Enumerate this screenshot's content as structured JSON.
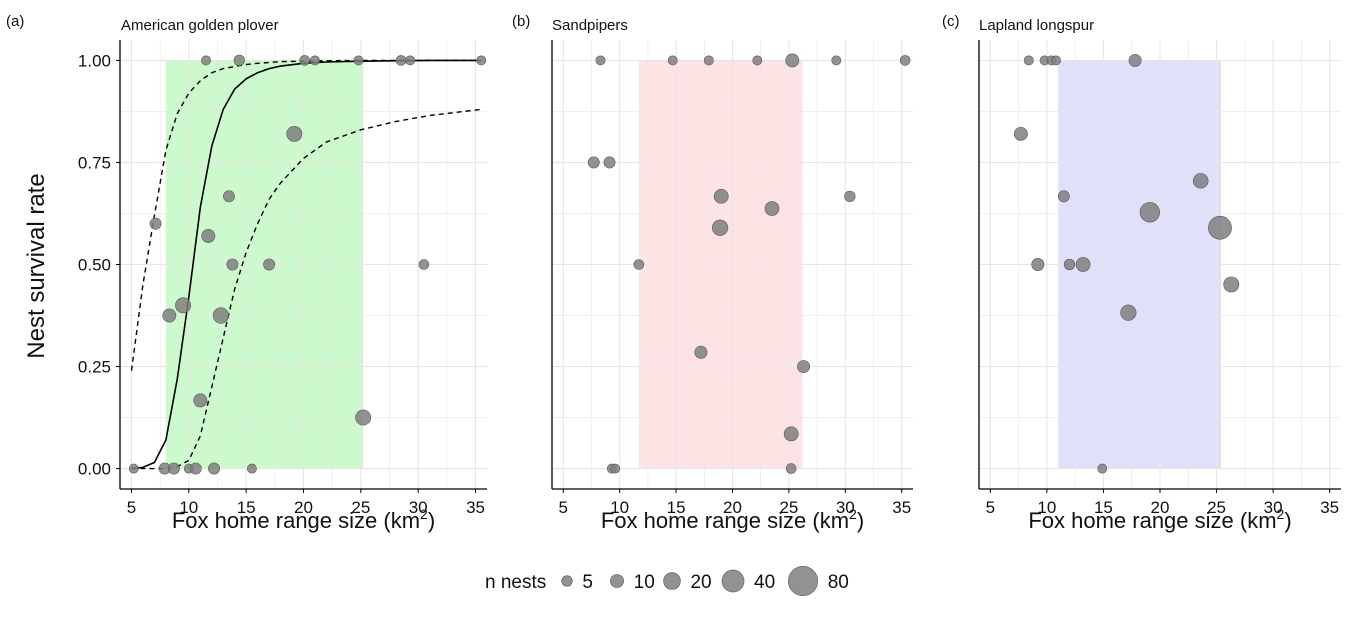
{
  "chart_data": [
    {
      "type": "scatter",
      "panel_label": "(a)",
      "title": "American golden plover",
      "xlabel": "Fox home range size",
      "xunit": "km",
      "xunit_sup": "2",
      "ylabel": "Nest survival rate",
      "xlim": [
        4,
        36
      ],
      "ylim": [
        -0.05,
        1.05
      ],
      "xticks": [
        5,
        10,
        15,
        20,
        25,
        30,
        35
      ],
      "yticks": [
        "0.00",
        "0.25",
        "0.50",
        "0.75",
        "1.00"
      ],
      "grid": true,
      "shaded_range": {
        "x": [
          8,
          25.2
        ],
        "color": "#ccfacc"
      },
      "fit": {
        "fit_x": [
          5,
          6,
          7,
          8,
          9,
          10,
          11,
          12,
          13,
          14,
          15,
          16,
          17,
          18,
          20,
          22,
          25,
          28,
          31,
          35.5
        ],
        "fit_y": [
          0.0,
          0.003,
          0.015,
          0.07,
          0.22,
          0.42,
          0.64,
          0.79,
          0.88,
          0.93,
          0.955,
          0.97,
          0.98,
          0.986,
          0.993,
          0.996,
          0.998,
          0.999,
          1.0,
          1.0
        ],
        "lower_y": [
          0.0,
          0.0,
          0.0,
          0.0,
          0.005,
          0.02,
          0.08,
          0.2,
          0.32,
          0.44,
          0.53,
          0.6,
          0.66,
          0.7,
          0.76,
          0.8,
          0.83,
          0.85,
          0.865,
          0.88
        ],
        "upper_y": [
          0.24,
          0.45,
          0.62,
          0.78,
          0.87,
          0.92,
          0.95,
          0.97,
          0.98,
          0.985,
          0.99,
          0.993,
          0.995,
          0.997,
          0.998,
          0.999,
          1.0,
          1.0,
          1.0,
          1.0
        ]
      },
      "points": [
        {
          "x": 5.2,
          "y": 0.0,
          "n": 3
        },
        {
          "x": 7.1,
          "y": 0.6,
          "n": 6
        },
        {
          "x": 7.9,
          "y": 0.0,
          "n": 6
        },
        {
          "x": 8.3,
          "y": 0.375,
          "n": 10
        },
        {
          "x": 8.7,
          "y": 0.0,
          "n": 6
        },
        {
          "x": 9.5,
          "y": 0.4,
          "n": 15
        },
        {
          "x": 10.0,
          "y": 0.0,
          "n": 3
        },
        {
          "x": 10.6,
          "y": 0.0,
          "n": 6
        },
        {
          "x": 11.0,
          "y": 0.167,
          "n": 10
        },
        {
          "x": 11.5,
          "y": 1.0,
          "n": 3
        },
        {
          "x": 11.7,
          "y": 0.57,
          "n": 10
        },
        {
          "x": 12.2,
          "y": 0.0,
          "n": 6
        },
        {
          "x": 12.8,
          "y": 0.375,
          "n": 16
        },
        {
          "x": 13.5,
          "y": 0.667,
          "n": 6
        },
        {
          "x": 13.8,
          "y": 0.5,
          "n": 6
        },
        {
          "x": 14.4,
          "y": 1.0,
          "n": 5
        },
        {
          "x": 15.5,
          "y": 0.0,
          "n": 3
        },
        {
          "x": 17.0,
          "y": 0.5,
          "n": 6
        },
        {
          "x": 19.2,
          "y": 0.82,
          "n": 15
        },
        {
          "x": 20.1,
          "y": 1.0,
          "n": 4
        },
        {
          "x": 21.0,
          "y": 1.0,
          "n": 3
        },
        {
          "x": 24.8,
          "y": 1.0,
          "n": 3
        },
        {
          "x": 25.2,
          "y": 0.125,
          "n": 15
        },
        {
          "x": 28.5,
          "y": 1.0,
          "n": 4
        },
        {
          "x": 29.3,
          "y": 1.0,
          "n": 3
        },
        {
          "x": 30.5,
          "y": 0.5,
          "n": 4
        },
        {
          "x": 35.5,
          "y": 1.0,
          "n": 3
        }
      ]
    },
    {
      "type": "scatter",
      "panel_label": "(b)",
      "title": "Sandpipers",
      "xlabel": "Fox home range size",
      "xunit": "km",
      "xunit_sup": "2",
      "xlim": [
        4,
        36
      ],
      "ylim": [
        -0.05,
        1.05
      ],
      "xticks": [
        5,
        10,
        15,
        20,
        25,
        30,
        35
      ],
      "grid": true,
      "shaded_range": {
        "x": [
          11.7,
          26.2
        ],
        "color": "#fde3e3"
      },
      "points": [
        {
          "x": 8.3,
          "y": 1.0,
          "n": 3
        },
        {
          "x": 7.7,
          "y": 0.75,
          "n": 6
        },
        {
          "x": 9.1,
          "y": 0.75,
          "n": 6
        },
        {
          "x": 9.3,
          "y": 0.0,
          "n": 3
        },
        {
          "x": 9.6,
          "y": 0.0,
          "n": 3
        },
        {
          "x": 11.7,
          "y": 0.5,
          "n": 4
        },
        {
          "x": 14.7,
          "y": 1.0,
          "n": 3
        },
        {
          "x": 17.2,
          "y": 0.285,
          "n": 8
        },
        {
          "x": 17.9,
          "y": 1.0,
          "n": 3
        },
        {
          "x": 19.0,
          "y": 0.667,
          "n": 12
        },
        {
          "x": 18.9,
          "y": 0.59,
          "n": 16
        },
        {
          "x": 22.2,
          "y": 1.0,
          "n": 3
        },
        {
          "x": 23.5,
          "y": 0.637,
          "n": 12
        },
        {
          "x": 25.2,
          "y": 0.085,
          "n": 12
        },
        {
          "x": 25.3,
          "y": 1.0,
          "n": 10
        },
        {
          "x": 25.2,
          "y": 0.0,
          "n": 4
        },
        {
          "x": 26.3,
          "y": 0.25,
          "n": 8
        },
        {
          "x": 29.2,
          "y": 1.0,
          "n": 3
        },
        {
          "x": 30.4,
          "y": 0.667,
          "n": 5
        },
        {
          "x": 35.3,
          "y": 1.0,
          "n": 4
        }
      ]
    },
    {
      "type": "scatter",
      "panel_label": "(c)",
      "title": "Lapland longspur",
      "xlabel": "Fox home range size",
      "xunit": "km",
      "xunit_sup": "2",
      "xlim": [
        4,
        36
      ],
      "ylim": [
        -0.05,
        1.05
      ],
      "xticks": [
        5,
        10,
        15,
        20,
        25,
        30,
        35
      ],
      "grid": true,
      "shaded_range": {
        "x": [
          11.0,
          25.4
        ],
        "color": "#e0e0fb"
      },
      "points": [
        {
          "x": 8.4,
          "y": 1.0,
          "n": 3
        },
        {
          "x": 9.8,
          "y": 1.0,
          "n": 3
        },
        {
          "x": 10.4,
          "y": 1.0,
          "n": 3
        },
        {
          "x": 10.8,
          "y": 1.0,
          "n": 3
        },
        {
          "x": 7.7,
          "y": 0.82,
          "n": 10
        },
        {
          "x": 11.5,
          "y": 0.667,
          "n": 6
        },
        {
          "x": 9.2,
          "y": 0.5,
          "n": 8
        },
        {
          "x": 12.0,
          "y": 0.5,
          "n": 5
        },
        {
          "x": 13.2,
          "y": 0.5,
          "n": 12
        },
        {
          "x": 14.9,
          "y": 0.0,
          "n": 3
        },
        {
          "x": 17.2,
          "y": 0.382,
          "n": 16
        },
        {
          "x": 17.8,
          "y": 1.0,
          "n": 8
        },
        {
          "x": 19.1,
          "y": 0.628,
          "n": 30
        },
        {
          "x": 23.6,
          "y": 0.705,
          "n": 14
        },
        {
          "x": 25.3,
          "y": 0.59,
          "n": 45
        },
        {
          "x": 26.3,
          "y": 0.451,
          "n": 15
        }
      ]
    }
  ],
  "legend": {
    "title": "n nests",
    "values": [
      5,
      10,
      20,
      40,
      80
    ],
    "labels": [
      "5",
      "10",
      "20",
      "40",
      "80"
    ]
  },
  "colors": {
    "point_fill": "#7f7f7f",
    "point_stroke": "#5a5a5a",
    "grid": "#e6e6e6",
    "axis": "#000000",
    "fit_line": "#000000"
  }
}
